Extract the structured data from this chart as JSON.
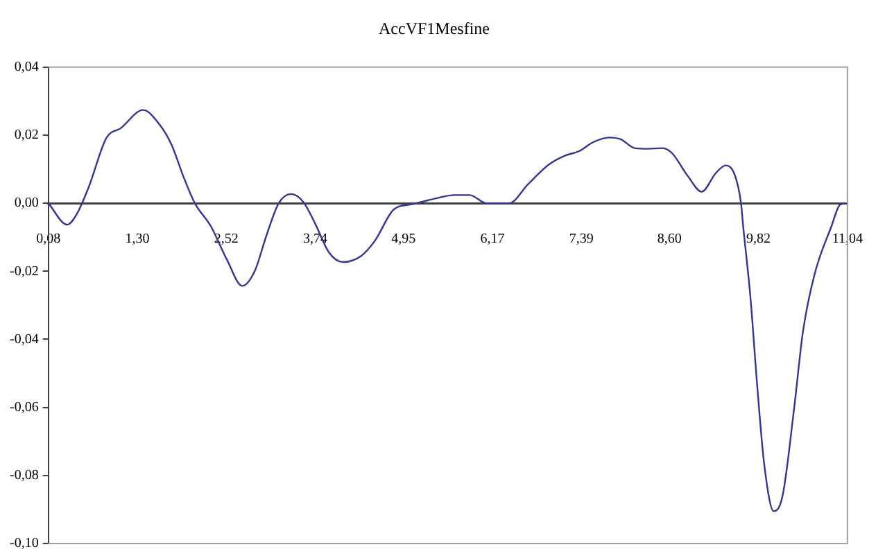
{
  "chart_data": {
    "type": "line",
    "title": "AccVF1Mesfine",
    "color": "#333399",
    "marker": "none",
    "grid": false,
    "legend": false,
    "x": [
      0.08,
      0.34,
      0.47,
      0.63,
      0.88,
      1.07,
      1.38,
      1.61,
      1.77,
      1.93,
      2.09,
      2.31,
      2.53,
      2.74,
      2.91,
      3.07,
      3.24,
      3.41,
      3.58,
      3.74,
      3.93,
      4.12,
      4.37,
      4.56,
      4.82,
      5.07,
      5.51,
      5.64,
      5.86,
      6.09,
      6.4,
      6.66,
      6.94,
      7.17,
      7.36,
      7.55,
      7.77,
      7.93,
      8.12,
      8.31,
      8.5,
      8.63,
      8.85,
      9.04,
      9.24,
      9.37,
      9.5,
      9.58,
      9.61,
      9.71,
      9.8,
      9.9,
      10.03,
      10.15,
      10.31,
      10.43,
      10.59,
      10.82,
      10.94,
      11.04
    ],
    "values": [
      0,
      -0.0063,
      -0.0032,
      0.0045,
      0.0193,
      0.022,
      0.0274,
      0.023,
      0.0172,
      0.008,
      0,
      -0.0068,
      -0.0166,
      -0.0243,
      -0.02,
      -0.0096,
      0,
      0.0027,
      0.0003,
      -0.006,
      -0.0145,
      -0.0173,
      -0.0155,
      -0.011,
      -0.0018,
      -0.0003,
      0.002,
      0.0024,
      0.0024,
      0,
      0,
      0.0056,
      0.0113,
      0.014,
      0.0153,
      0.0179,
      0.0193,
      0.0188,
      0.0162,
      0.016,
      0.0162,
      0.0148,
      0.008,
      0.0034,
      0.009,
      0.0111,
      0.008,
      0,
      -0.0068,
      -0.0278,
      -0.053,
      -0.077,
      -0.0905,
      -0.086,
      -0.06,
      -0.0377,
      -0.0208,
      -0.0068,
      -0.0004,
      0
    ],
    "xlim": [
      0.08,
      11.04
    ],
    "xticks": [
      {
        "value": 0.08,
        "label": "0,08"
      },
      {
        "value": 1.3,
        "label": "1,30"
      },
      {
        "value": 2.52,
        "label": "2,52"
      },
      {
        "value": 3.74,
        "label": "3,74"
      },
      {
        "value": 4.95,
        "label": "4,95"
      },
      {
        "value": 6.17,
        "label": "6,17"
      },
      {
        "value": 7.39,
        "label": "7,39"
      },
      {
        "value": 8.6,
        "label": "8,60"
      },
      {
        "value": 9.82,
        "label": "9,82"
      },
      {
        "value": 11.04,
        "label": "11,04"
      }
    ],
    "ylim": [
      -0.1,
      0.04
    ],
    "yticks": [
      {
        "value": -0.1,
        "label": "-0,10"
      },
      {
        "value": -0.08,
        "label": "-0,08"
      },
      {
        "value": -0.06,
        "label": "-0,06"
      },
      {
        "value": -0.04,
        "label": "-0,04"
      },
      {
        "value": -0.02,
        "label": "-0,02"
      },
      {
        "value": 0,
        "label": "0,00"
      },
      {
        "value": 0.02,
        "label": "0,02"
      },
      {
        "value": 0.04,
        "label": "0,04"
      }
    ]
  }
}
